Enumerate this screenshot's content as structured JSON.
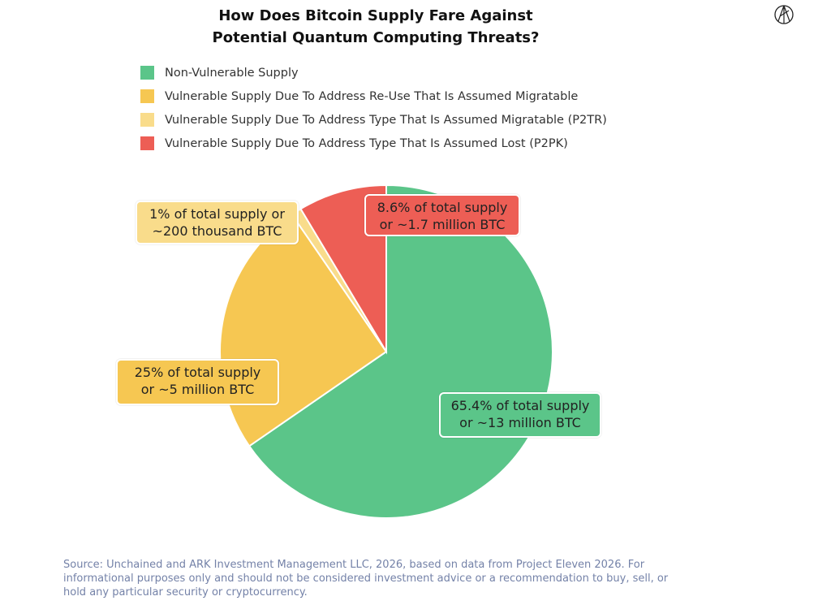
{
  "chart_data": {
    "type": "pie",
    "title": "How Does Bitcoin Supply Fare Against Potential Quantum Computing Threats?",
    "title_lines": [
      "How Does Bitcoin Supply Fare Against",
      "Potential Quantum Computing Threats?"
    ],
    "legend_position": "top",
    "slices": [
      {
        "name": "Non-Vulnerable Supply",
        "value": 65.4,
        "color": "#5bc589",
        "label": [
          "65.4% of total supply",
          "or ~13 million BTC"
        ]
      },
      {
        "name": "Vulnerable Supply Due To Address Re-Use That Is Assumed Migratable",
        "value": 25,
        "color": "#f6c752",
        "label": [
          "25% of total supply",
          "or ~5 million BTC"
        ]
      },
      {
        "name": "Vulnerable Supply Due To Address Type That Is Assumed Migratable (P2TR)",
        "value": 1,
        "color": "#f9dc8b",
        "label": [
          "1% of total supply or",
          "~200 thousand BTC"
        ]
      },
      {
        "name": "Vulnerable Supply Due To Address Type That Is Assumed Lost (P2PK)",
        "value": 8.6,
        "color": "#ed5e55",
        "label": [
          "8.6% of total supply",
          "or ~1.7 million BTC"
        ]
      }
    ]
  },
  "source": "Source: Unchained and ARK Investment Management LLC, 2026, based on data from Project Eleven 2026. For informational purposes only and should not be considered investment advice or a recommendation to buy, sell, or hold any particular security or cryptocurrency.",
  "logo": "ARK"
}
